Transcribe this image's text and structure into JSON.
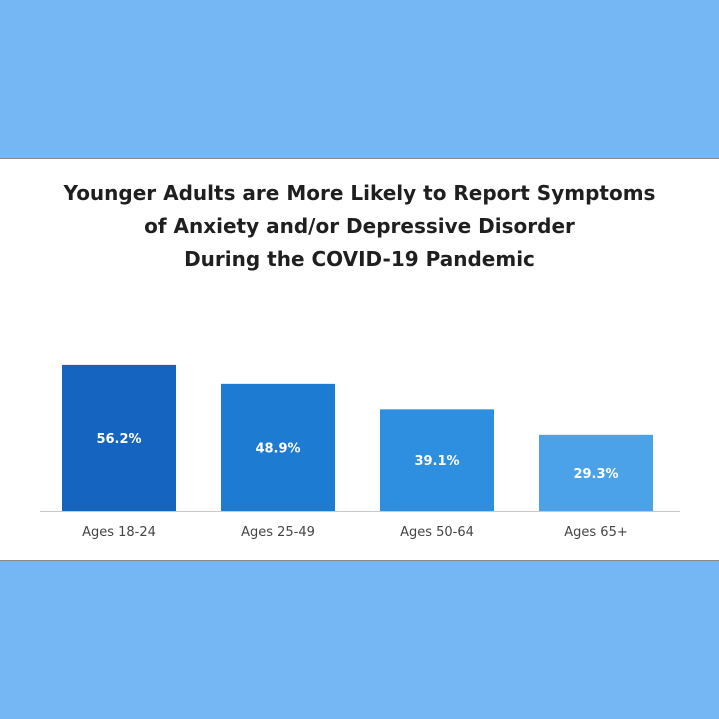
{
  "chart_data": {
    "type": "bar",
    "title": [
      "Younger Adults are More Likely to Report Symptoms",
      "of Anxiety and/or Depressive Disorder",
      "During the COVID-19 Pandemic"
    ],
    "categories": [
      "Ages 18-24",
      "Ages 25-49",
      "Ages 50-64",
      "Ages 65+"
    ],
    "values": [
      56.2,
      48.9,
      39.1,
      29.3
    ],
    "value_labels": [
      "56.2%",
      "48.9%",
      "39.1%",
      "29.3%"
    ],
    "colors": [
      "#1565c0",
      "#1e7bd2",
      "#2e8fe0",
      "#4ba2e8"
    ],
    "ylim": [
      0,
      60
    ],
    "grid": false,
    "legend": "none"
  }
}
